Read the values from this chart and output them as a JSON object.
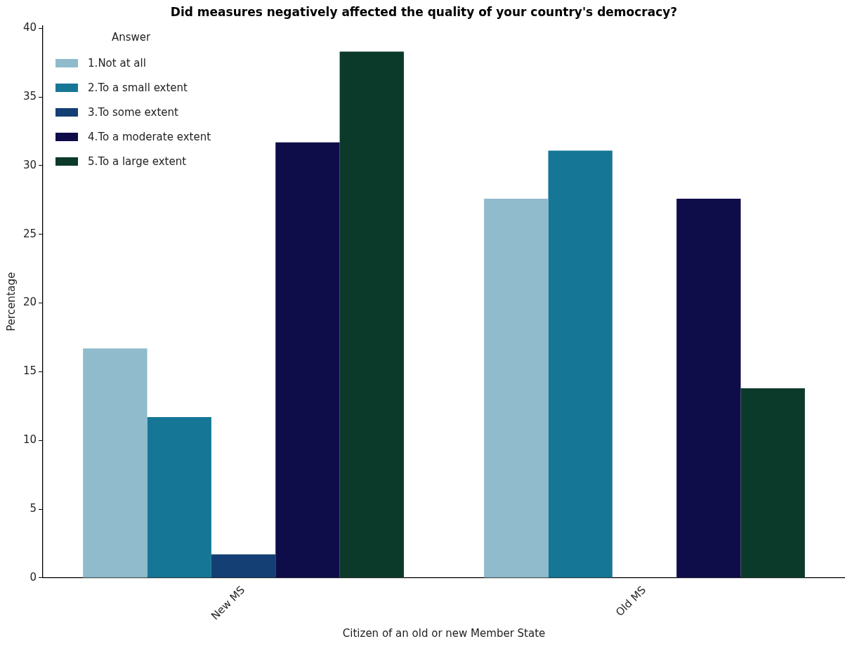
{
  "chart_data": {
    "type": "bar",
    "title": "Did measures negatively affected the quality of your country's democracy?",
    "xlabel": "Citizen of an old or new Member State",
    "ylabel": "Percentage",
    "legend_title": "Answer",
    "categories": [
      "New MS",
      "Old MS"
    ],
    "series": [
      {
        "name": "1.Not at all",
        "color": "#8fbbcc",
        "values": [
          16.7,
          27.6
        ]
      },
      {
        "name": "2.To a small extent",
        "color": "#167696",
        "values": [
          11.7,
          31.1
        ]
      },
      {
        "name": "3.To some extent",
        "color": "#143f74",
        "values": [
          1.7,
          0
        ]
      },
      {
        "name": "4.To a moderate extent",
        "color": "#0f0c4a",
        "values": [
          31.7,
          27.6
        ]
      },
      {
        "name": "5.To a large extent",
        "color": "#0b3a2a",
        "values": [
          38.3,
          13.8
        ]
      }
    ],
    "ylim": [
      0,
      40.2
    ],
    "yticks": [
      0,
      5,
      10,
      15,
      20,
      25,
      30,
      35,
      40
    ],
    "grid": false,
    "legend": "top left"
  }
}
